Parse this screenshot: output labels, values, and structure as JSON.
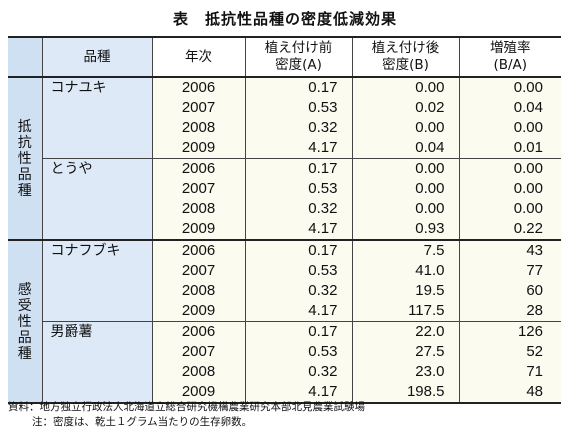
{
  "title": "表　抵抗性品種の密度低減効果",
  "headers": {
    "variety": "品種",
    "year": "年次",
    "before": [
      "植え付け前",
      "密度(A)"
    ],
    "after": [
      "植え付け後",
      "密度(B)"
    ],
    "rate": [
      "増殖率",
      "(B/A)"
    ]
  },
  "groups": [
    {
      "name": "抵抗性品種",
      "varieties": [
        {
          "name": "コナユキ",
          "rows": [
            {
              "year": "2006",
              "a": "0.17",
              "b": "0.00",
              "r": "0.00"
            },
            {
              "year": "2007",
              "a": "0.53",
              "b": "0.02",
              "r": "0.04"
            },
            {
              "year": "2008",
              "a": "0.32",
              "b": "0.00",
              "r": "0.00"
            },
            {
              "year": "2009",
              "a": "4.17",
              "b": "0.04",
              "r": "0.01"
            }
          ]
        },
        {
          "name": "とうや",
          "rows": [
            {
              "year": "2006",
              "a": "0.17",
              "b": "0.00",
              "r": "0.00"
            },
            {
              "year": "2007",
              "a": "0.53",
              "b": "0.00",
              "r": "0.00"
            },
            {
              "year": "2008",
              "a": "0.32",
              "b": "0.00",
              "r": "0.00"
            },
            {
              "year": "2009",
              "a": "4.17",
              "b": "0.93",
              "r": "0.22"
            }
          ]
        }
      ]
    },
    {
      "name": "感受性品種",
      "varieties": [
        {
          "name": "コナフブキ",
          "rows": [
            {
              "year": "2006",
              "a": "0.17",
              "b": "7.5",
              "r": "43"
            },
            {
              "year": "2007",
              "a": "0.53",
              "b": "41.0",
              "r": "77"
            },
            {
              "year": "2008",
              "a": "0.32",
              "b": "19.5",
              "r": "60"
            },
            {
              "year": "2009",
              "a": "4.17",
              "b": "117.5",
              "r": "28"
            }
          ]
        },
        {
          "name": "男爵薯",
          "rows": [
            {
              "year": "2006",
              "a": "0.17",
              "b": "22.0",
              "r": "126"
            },
            {
              "year": "2007",
              "a": "0.53",
              "b": "27.5",
              "r": "52"
            },
            {
              "year": "2008",
              "a": "0.32",
              "b": "23.0",
              "r": "71"
            },
            {
              "year": "2009",
              "a": "4.17",
              "b": "198.5",
              "r": "48"
            }
          ]
        }
      ]
    }
  ],
  "notes": {
    "source": "資料：地方独立行政法人北海道立総合研究機構農業研究本部北見農業試験場",
    "note": "注：密度は、乾土１グラム当たりの生存卵数。"
  }
}
